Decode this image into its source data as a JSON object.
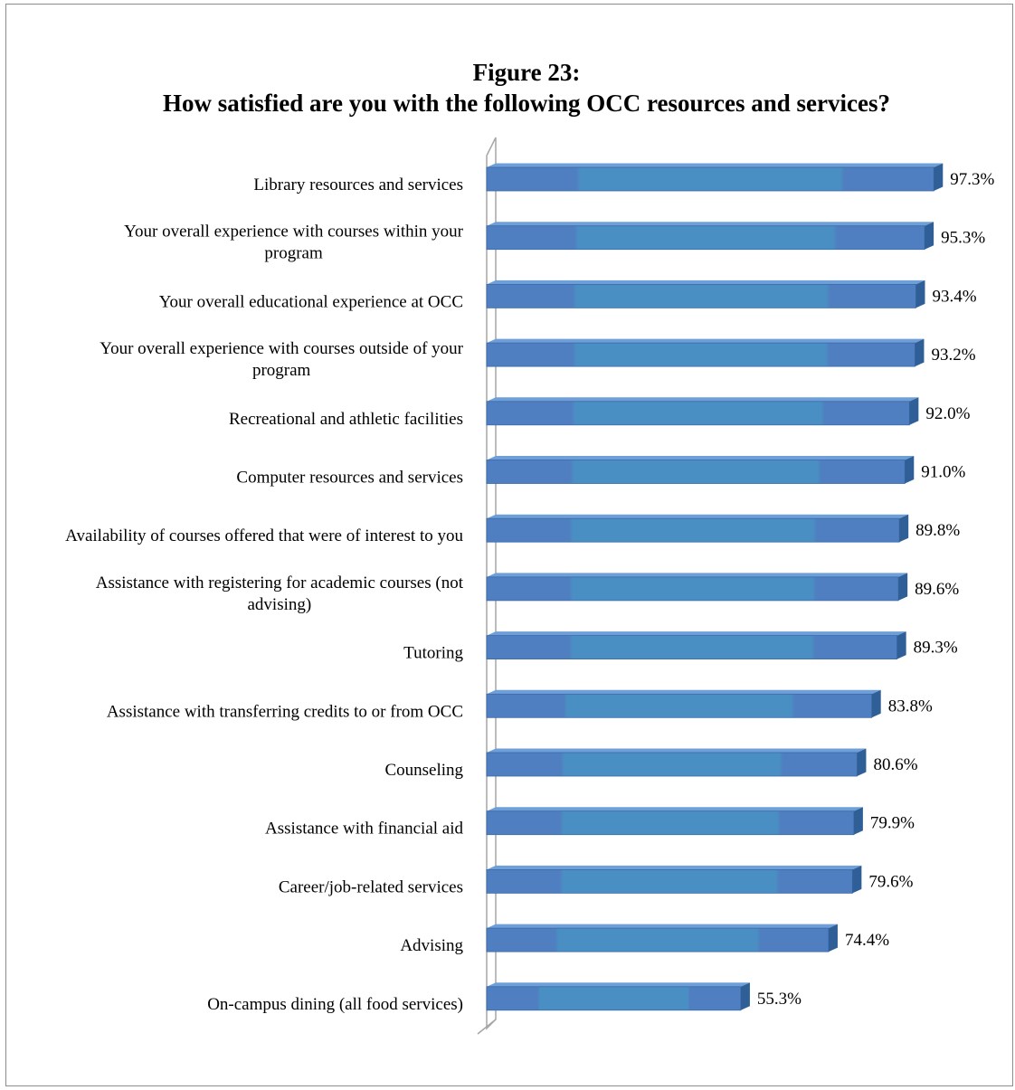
{
  "chart_data": {
    "type": "bar",
    "orientation": "horizontal",
    "style": "3d-cylinder-bars",
    "title_line1": "Figure 23:",
    "title_line2": "How satisfied are you with the following OCC resources and services?",
    "xlabel": "",
    "ylabel": "",
    "xlim": [
      0,
      100
    ],
    "grid": false,
    "legend": "none",
    "colors": {
      "bar_front": "#4f81bd",
      "bar_center": "#4a90c4",
      "bar_top": "#6f9fd8",
      "bar_end": "#2f5f96",
      "axis": "#a6a6a6"
    },
    "categories": [
      [
        "Library resources and services"
      ],
      [
        "Your overall experience with courses within your",
        "program"
      ],
      [
        "Your overall educational experience at OCC"
      ],
      [
        "Your overall experience with courses outside of your",
        "program"
      ],
      [
        "Recreational and athletic facilities"
      ],
      [
        "Computer resources and services"
      ],
      [
        "Availability of courses offered that were of interest to you"
      ],
      [
        "Assistance with registering for academic courses (not",
        "advising)"
      ],
      [
        "Tutoring"
      ],
      [
        "Assistance with transferring credits to or from OCC"
      ],
      [
        "Counseling"
      ],
      [
        "Assistance with financial aid"
      ],
      [
        "Career/job-related services"
      ],
      [
        "Advising"
      ],
      [
        "On-campus dining (all food services)"
      ]
    ],
    "values": [
      97.3,
      95.3,
      93.4,
      93.2,
      92.0,
      91.0,
      89.8,
      89.6,
      89.3,
      83.8,
      80.6,
      79.9,
      79.6,
      74.4,
      55.3
    ],
    "value_labels": [
      "97.3%",
      "95.3%",
      "93.4%",
      "93.2%",
      "92.0%",
      "91.0%",
      "89.8%",
      "89.6%",
      "89.3%",
      "83.8%",
      "80.6%",
      "79.9%",
      "79.6%",
      "74.4%",
      "55.3%"
    ]
  }
}
